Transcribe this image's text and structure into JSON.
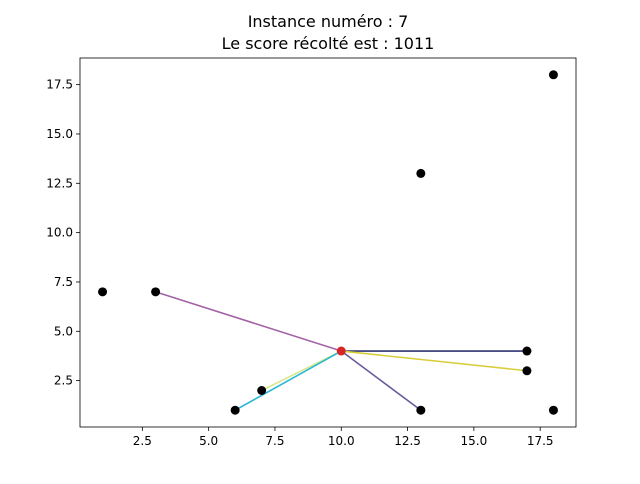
{
  "chart_data": {
    "type": "scatter",
    "title": [
      "Instance numéro : 7",
      "Le score récolté est : 1011"
    ],
    "xlabel": "",
    "ylabel": "",
    "xlim": [
      0.15,
      18.85
    ],
    "ylim": [
      0.15,
      18.85
    ],
    "xticks": [
      2.5,
      5.0,
      7.5,
      10.0,
      12.5,
      15.0,
      17.5
    ],
    "xtick_labels": [
      "2.5",
      "5.0",
      "7.5",
      "10.0",
      "12.5",
      "15.0",
      "17.5"
    ],
    "yticks": [
      2.5,
      5.0,
      7.5,
      10.0,
      12.5,
      15.0,
      17.5
    ],
    "ytick_labels": [
      "2.5",
      "5.0",
      "7.5",
      "10.0",
      "12.5",
      "15.0",
      "17.5"
    ],
    "grid": false,
    "depot": {
      "x": 10,
      "y": 4,
      "color": "#d62728"
    },
    "points": [
      {
        "x": 1,
        "y": 7
      },
      {
        "x": 3,
        "y": 7
      },
      {
        "x": 6,
        "y": 1
      },
      {
        "x": 7,
        "y": 2
      },
      {
        "x": 13,
        "y": 1
      },
      {
        "x": 13,
        "y": 13
      },
      {
        "x": 17,
        "y": 3
      },
      {
        "x": 17,
        "y": 4
      },
      {
        "x": 18,
        "y": 1
      },
      {
        "x": 18,
        "y": 18
      }
    ],
    "point_color": "#000000",
    "routes": [
      {
        "color": "#a463a5",
        "path": [
          [
            10,
            4
          ],
          [
            3,
            7
          ]
        ]
      },
      {
        "color": "#2f3572",
        "path": [
          [
            10,
            4
          ],
          [
            17,
            4
          ]
        ]
      },
      {
        "color": "#d8ce3a",
        "path": [
          [
            10,
            4
          ],
          [
            17,
            3
          ]
        ]
      },
      {
        "color": "#6a5a9c",
        "path": [
          [
            10,
            4
          ],
          [
            13,
            1
          ]
        ]
      },
      {
        "color": "#d4e88a",
        "path": [
          [
            10,
            4
          ],
          [
            7,
            2
          ]
        ]
      },
      {
        "color": "#2ab7d6",
        "path": [
          [
            10,
            4
          ],
          [
            6,
            1
          ]
        ]
      }
    ]
  }
}
